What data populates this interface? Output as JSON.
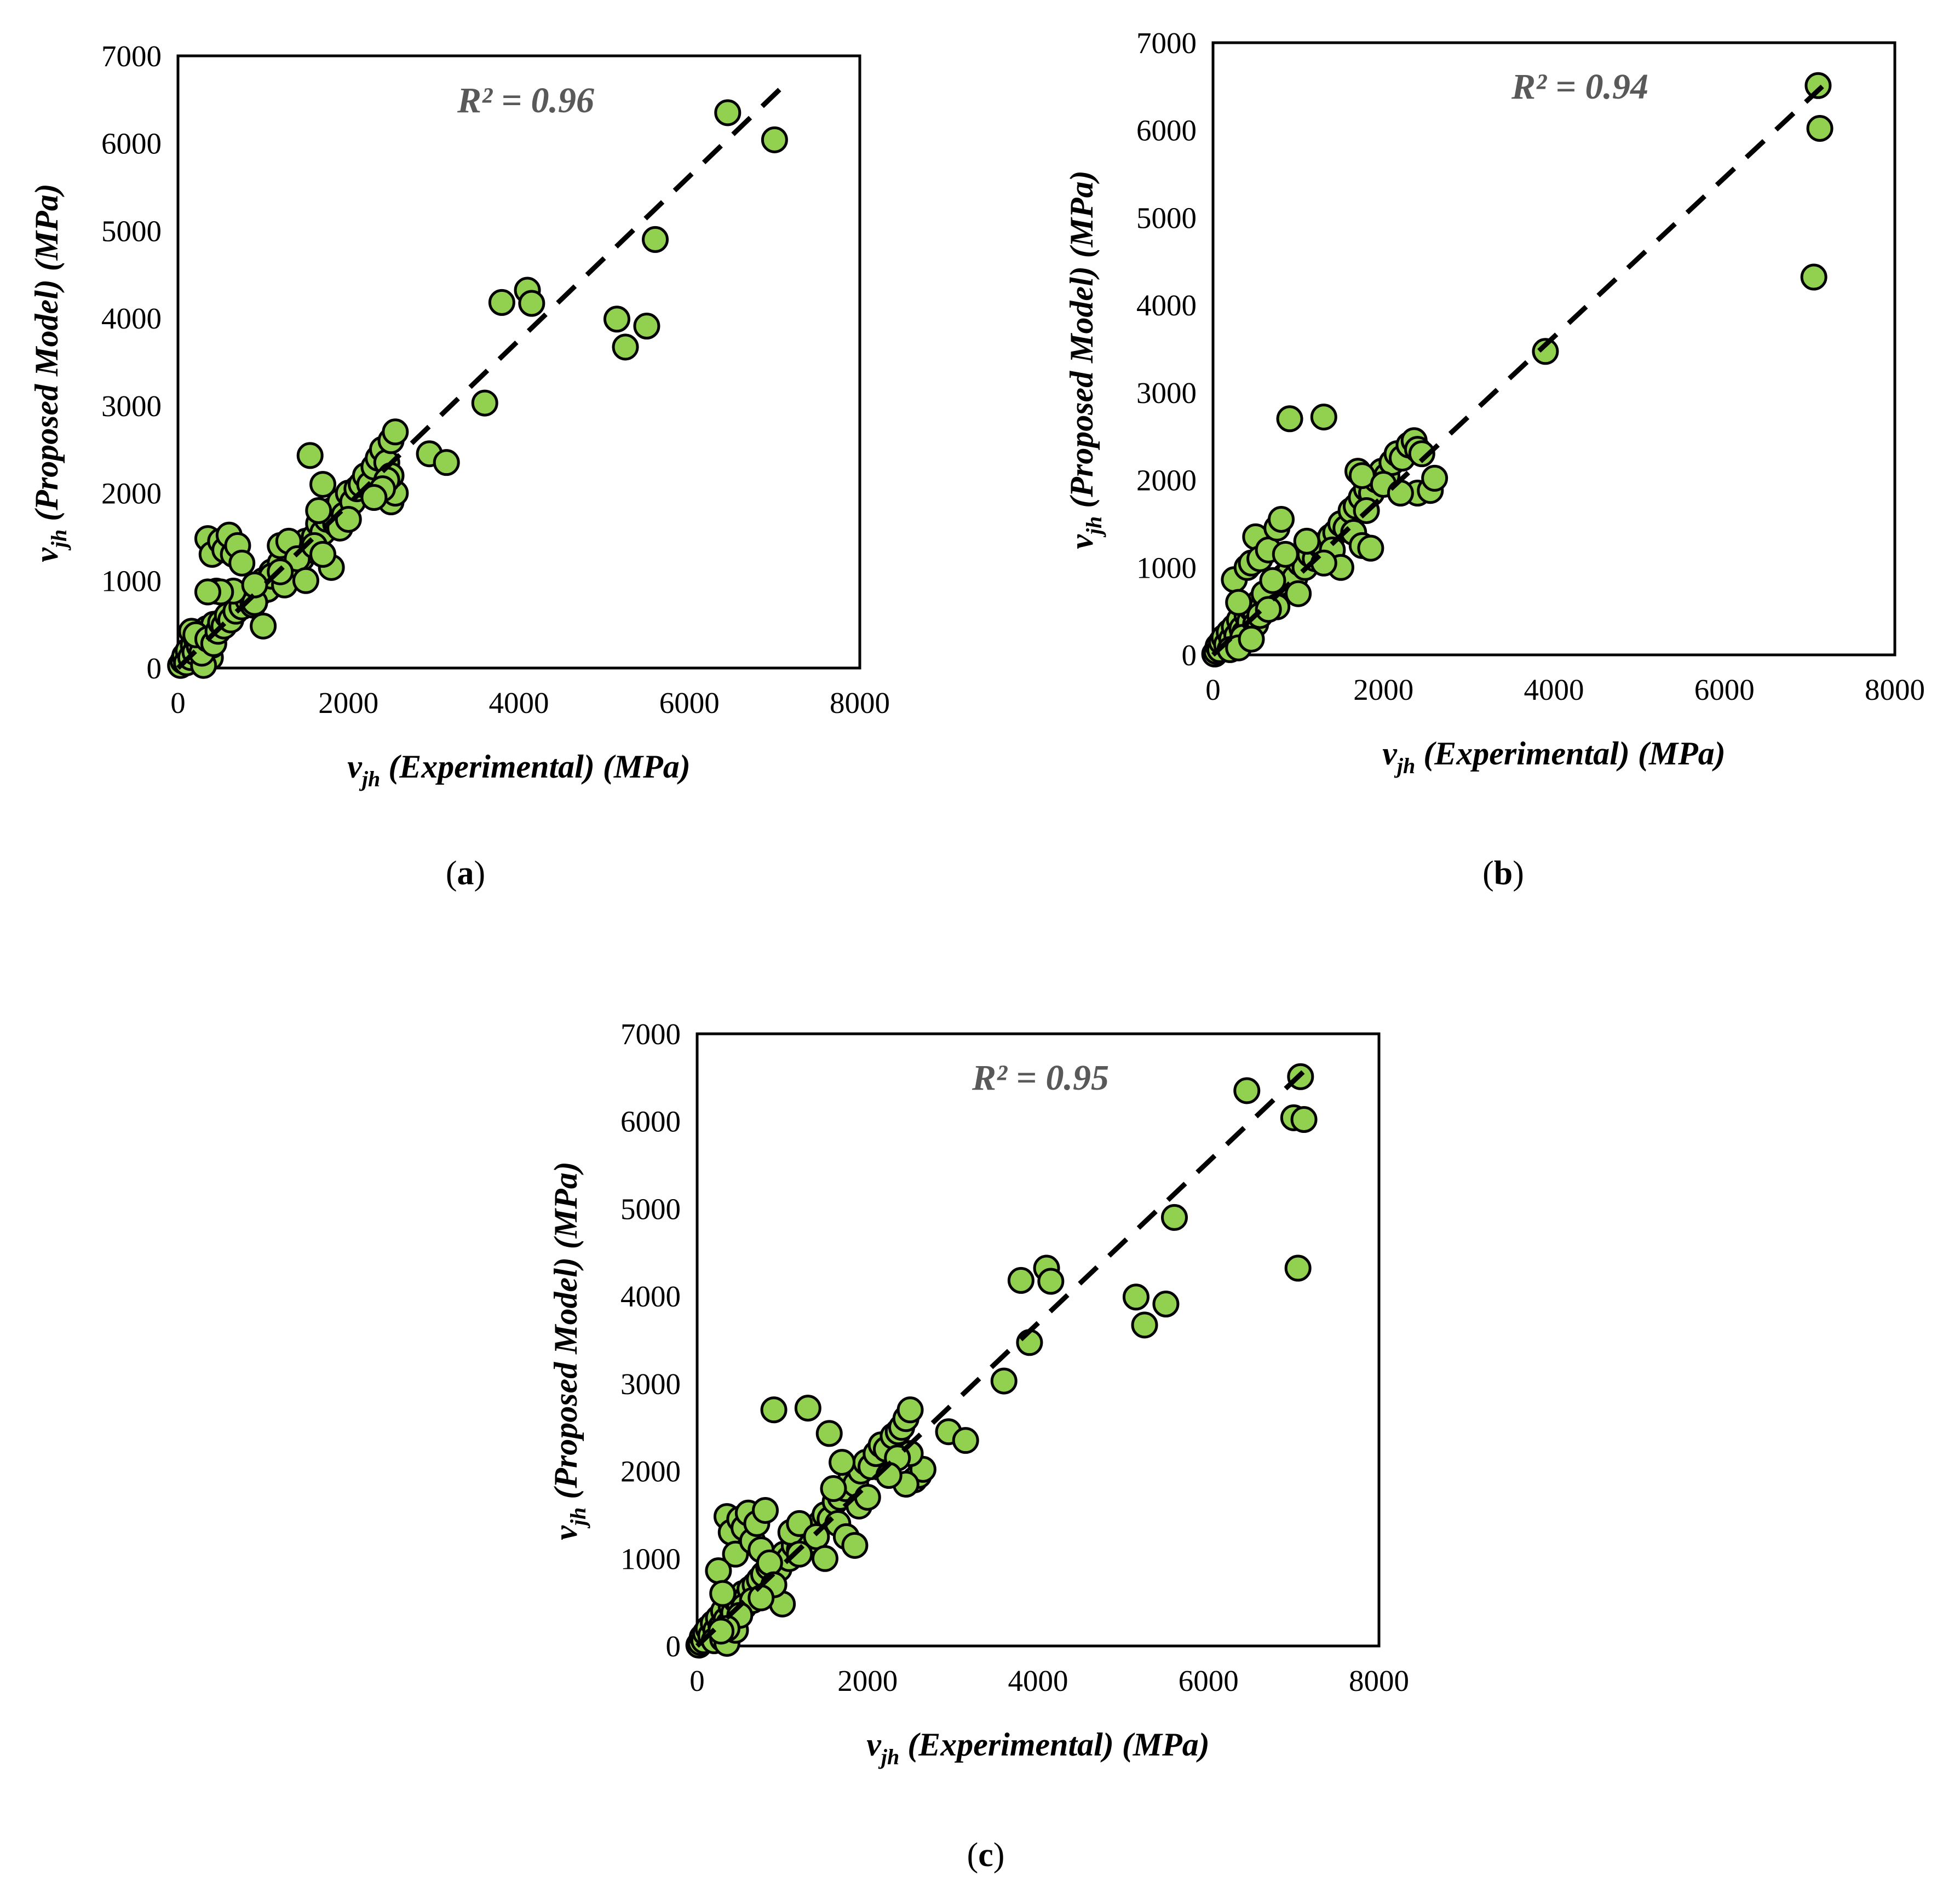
{
  "chart_data": [
    {
      "panel": "a",
      "type": "scatter",
      "caption": "a",
      "r2_label": "R² = 0.96",
      "xlabel_var": "v",
      "xlabel_sub": "jh",
      "xlabel_rest": " (Experimental) (MPa)",
      "ylabel_var": "v",
      "ylabel_sub": "jh",
      "ylabel_rest": " (Proposed Model) (MPa)",
      "xlim": [
        0,
        8000
      ],
      "ylim": [
        0,
        7000
      ],
      "xticks": [
        "0",
        "2000",
        "4000",
        "6000",
        "8000"
      ],
      "yticks": [
        "0",
        "1000",
        "2000",
        "3000",
        "4000",
        "5000",
        "6000",
        "7000"
      ],
      "trendline": [
        [
          0,
          0
        ],
        [
          7150,
          6700
        ]
      ],
      "points": [
        [
          30,
          30
        ],
        [
          60,
          80
        ],
        [
          80,
          140
        ],
        [
          100,
          60
        ],
        [
          120,
          200
        ],
        [
          150,
          120
        ],
        [
          180,
          260
        ],
        [
          200,
          180
        ],
        [
          220,
          320
        ],
        [
          250,
          250
        ],
        [
          270,
          400
        ],
        [
          300,
          300
        ],
        [
          320,
          200
        ],
        [
          340,
          450
        ],
        [
          360,
          350
        ],
        [
          380,
          120
        ],
        [
          400,
          260
        ],
        [
          420,
          500
        ],
        [
          300,
          30
        ],
        [
          280,
          170
        ],
        [
          160,
          420
        ],
        [
          210,
          380
        ],
        [
          350,
          330
        ],
        [
          420,
          280
        ],
        [
          470,
          420
        ],
        [
          500,
          520
        ],
        [
          540,
          480
        ],
        [
          580,
          600
        ],
        [
          620,
          550
        ],
        [
          680,
          650
        ],
        [
          750,
          700
        ],
        [
          820,
          780
        ],
        [
          880,
          720
        ],
        [
          950,
          850
        ],
        [
          1000,
          1000
        ],
        [
          1050,
          900
        ],
        [
          1100,
          1100
        ],
        [
          1150,
          1050
        ],
        [
          1200,
          1200
        ],
        [
          1300,
          1100
        ],
        [
          1400,
          1300
        ],
        [
          1450,
          1250
        ],
        [
          1500,
          1450
        ],
        [
          1550,
          1350
        ],
        [
          1600,
          1500
        ],
        [
          1650,
          1650
        ],
        [
          1700,
          1550
        ],
        [
          1750,
          1700
        ],
        [
          1800,
          1800
        ],
        [
          1850,
          1650
        ],
        [
          1900,
          1900
        ],
        [
          1950,
          1750
        ],
        [
          2000,
          2000
        ],
        [
          2050,
          1900
        ],
        [
          2100,
          2050
        ],
        [
          2150,
          2100
        ],
        [
          2200,
          2200
        ],
        [
          2250,
          2100
        ],
        [
          2300,
          2300
        ],
        [
          2350,
          2400
        ],
        [
          2400,
          2500
        ],
        [
          2450,
          2350
        ],
        [
          2500,
          2600
        ],
        [
          2550,
          2700
        ],
        [
          2500,
          1900
        ],
        [
          2550,
          2000
        ],
        [
          2500,
          2200
        ],
        [
          2450,
          2150
        ],
        [
          2400,
          2050
        ],
        [
          2300,
          1950
        ],
        [
          350,
          1480
        ],
        [
          400,
          1300
        ],
        [
          450,
          880
        ],
        [
          500,
          1450
        ],
        [
          550,
          1350
        ],
        [
          600,
          1520
        ],
        [
          650,
          1300
        ],
        [
          700,
          1400
        ],
        [
          750,
          1200
        ],
        [
          650,
          880
        ],
        [
          500,
          870
        ],
        [
          350,
          870
        ],
        [
          900,
          750
        ],
        [
          1000,
          480
        ],
        [
          1100,
          1050
        ],
        [
          1200,
          1400
        ],
        [
          1250,
          950
        ],
        [
          1300,
          1450
        ],
        [
          1400,
          1250
        ],
        [
          1500,
          1000
        ],
        [
          1550,
          2430
        ],
        [
          1700,
          2100
        ],
        [
          1800,
          1150
        ],
        [
          1900,
          1600
        ],
        [
          2000,
          1700
        ],
        [
          1600,
          1400
        ],
        [
          1650,
          1800
        ],
        [
          1700,
          1300
        ],
        [
          1200,
          1100
        ],
        [
          900,
          950
        ],
        [
          2950,
          2450
        ],
        [
          3150,
          2350
        ],
        [
          3600,
          3030
        ],
        [
          3800,
          4180
        ],
        [
          4100,
          4320
        ],
        [
          4150,
          4170
        ],
        [
          5150,
          3990
        ],
        [
          5250,
          3670
        ],
        [
          5500,
          3910
        ],
        [
          5600,
          4900
        ],
        [
          6450,
          6350
        ],
        [
          7000,
          6040
        ]
      ]
    },
    {
      "panel": "b",
      "type": "scatter",
      "caption": "b",
      "r2_label": "R² = 0.94",
      "xlabel_var": "v",
      "xlabel_sub": "jh",
      "xlabel_rest": " (Experimental) (MPa)",
      "ylabel_var": "v",
      "ylabel_sub": "jh",
      "ylabel_rest": " (Proposed Model) (MPa)",
      "xlim": [
        0,
        8000
      ],
      "ylim": [
        0,
        7000
      ],
      "xticks": [
        "0",
        "2000",
        "4000",
        "6000",
        "8000"
      ],
      "yticks": [
        "0",
        "1000",
        "2000",
        "3000",
        "4000",
        "5000",
        "6000",
        "7000"
      ],
      "trendline": [
        [
          0,
          0
        ],
        [
          7150,
          6500
        ]
      ],
      "points": [
        [
          20,
          10
        ],
        [
          40,
          40
        ],
        [
          60,
          100
        ],
        [
          80,
          60
        ],
        [
          100,
          150
        ],
        [
          130,
          200
        ],
        [
          160,
          120
        ],
        [
          190,
          260
        ],
        [
          220,
          180
        ],
        [
          250,
          320
        ],
        [
          280,
          220
        ],
        [
          310,
          400
        ],
        [
          340,
          300
        ],
        [
          370,
          250
        ],
        [
          400,
          450
        ],
        [
          430,
          380
        ],
        [
          460,
          520
        ],
        [
          500,
          470
        ],
        [
          540,
          600
        ],
        [
          580,
          550
        ],
        [
          620,
          650
        ],
        [
          680,
          700
        ],
        [
          730,
          760
        ],
        [
          780,
          820
        ],
        [
          840,
          900
        ],
        [
          900,
          950
        ],
        [
          960,
          880
        ],
        [
          1020,
          1050
        ],
        [
          1080,
          1000
        ],
        [
          1140,
          1150
        ],
        [
          1200,
          1100
        ],
        [
          1260,
          1250
        ],
        [
          1320,
          1200
        ],
        [
          1380,
          1350
        ],
        [
          1440,
          1400
        ],
        [
          1500,
          1500
        ],
        [
          1560,
          1450
        ],
        [
          1620,
          1650
        ],
        [
          1680,
          1700
        ],
        [
          1740,
          1800
        ],
        [
          1800,
          1900
        ],
        [
          1860,
          1850
        ],
        [
          1920,
          2000
        ],
        [
          1980,
          2100
        ],
        [
          2040,
          2050
        ],
        [
          2100,
          2200
        ],
        [
          2160,
          2300
        ],
        [
          2220,
          2250
        ],
        [
          2300,
          2400
        ],
        [
          2360,
          2450
        ],
        [
          2400,
          1850
        ],
        [
          2550,
          1880
        ],
        [
          2600,
          2020
        ],
        [
          250,
          860
        ],
        [
          300,
          600
        ],
        [
          400,
          1000
        ],
        [
          450,
          1050
        ],
        [
          500,
          1350
        ],
        [
          550,
          1100
        ],
        [
          600,
          700
        ],
        [
          650,
          1200
        ],
        [
          700,
          850
        ],
        [
          750,
          1450
        ],
        [
          800,
          1550
        ],
        [
          850,
          1150
        ],
        [
          900,
          2700
        ],
        [
          1300,
          2720
        ],
        [
          1100,
          1300
        ],
        [
          1400,
          1200
        ],
        [
          1500,
          1000
        ],
        [
          1650,
          1400
        ],
        [
          1750,
          1250
        ],
        [
          1850,
          1220
        ],
        [
          1700,
          2100
        ],
        [
          1750,
          2050
        ],
        [
          1800,
          1650
        ],
        [
          2000,
          1950
        ],
        [
          2200,
          1850
        ],
        [
          2400,
          2350
        ],
        [
          2450,
          2300
        ],
        [
          1300,
          1050
        ],
        [
          1000,
          700
        ],
        [
          750,
          550
        ],
        [
          500,
          350
        ],
        [
          350,
          200
        ],
        [
          200,
          60
        ],
        [
          300,
          80
        ],
        [
          450,
          180
        ],
        [
          550,
          450
        ],
        [
          650,
          520
        ],
        [
          3900,
          3470
        ],
        [
          7050,
          4320
        ],
        [
          7100,
          6510
        ],
        [
          7120,
          6020
        ]
      ]
    },
    {
      "panel": "c",
      "type": "scatter",
      "caption": "c",
      "r2_label": "R² = 0.95",
      "xlabel_var": "v",
      "xlabel_sub": "jh",
      "xlabel_rest": " (Experimental) (MPa)",
      "ylabel_var": "v",
      "ylabel_sub": "jh",
      "ylabel_rest": " (Proposed Model) (MPa)",
      "xlim": [
        0,
        8000
      ],
      "ylim": [
        0,
        7000
      ],
      "xticks": [
        "0",
        "2000",
        "4000",
        "6000",
        "8000"
      ],
      "yticks": [
        "0",
        "1000",
        "2000",
        "3000",
        "4000",
        "5000",
        "6000",
        "7000"
      ],
      "trendline": [
        [
          0,
          0
        ],
        [
          7150,
          6600
        ]
      ],
      "points": [
        [
          20,
          10
        ],
        [
          40,
          40
        ],
        [
          60,
          100
        ],
        [
          80,
          60
        ],
        [
          100,
          150
        ],
        [
          130,
          200
        ],
        [
          160,
          120
        ],
        [
          190,
          260
        ],
        [
          220,
          180
        ],
        [
          250,
          320
        ],
        [
          280,
          220
        ],
        [
          310,
          400
        ],
        [
          340,
          300
        ],
        [
          370,
          250
        ],
        [
          400,
          450
        ],
        [
          430,
          380
        ],
        [
          460,
          520
        ],
        [
          500,
          470
        ],
        [
          540,
          600
        ],
        [
          580,
          550
        ],
        [
          620,
          650
        ],
        [
          680,
          700
        ],
        [
          730,
          760
        ],
        [
          780,
          820
        ],
        [
          840,
          900
        ],
        [
          900,
          950
        ],
        [
          960,
          880
        ],
        [
          1020,
          1050
        ],
        [
          1080,
          1000
        ],
        [
          1140,
          1150
        ],
        [
          1200,
          1100
        ],
        [
          1260,
          1250
        ],
        [
          1320,
          1200
        ],
        [
          1380,
          1350
        ],
        [
          1440,
          1400
        ],
        [
          1500,
          1500
        ],
        [
          1560,
          1450
        ],
        [
          1620,
          1650
        ],
        [
          1680,
          1700
        ],
        [
          1740,
          1800
        ],
        [
          1800,
          1900
        ],
        [
          1860,
          1850
        ],
        [
          1920,
          2000
        ],
        [
          1980,
          2100
        ],
        [
          2040,
          2050
        ],
        [
          2100,
          2200
        ],
        [
          2160,
          2300
        ],
        [
          2220,
          2250
        ],
        [
          2300,
          2400
        ],
        [
          2360,
          2450
        ],
        [
          2400,
          2500
        ],
        [
          2450,
          2600
        ],
        [
          2500,
          2700
        ],
        [
          2550,
          1900
        ],
        [
          2600,
          1950
        ],
        [
          2650,
          2020
        ],
        [
          2500,
          2200
        ],
        [
          2450,
          1850
        ],
        [
          2350,
          2150
        ],
        [
          2250,
          1950
        ],
        [
          350,
          1480
        ],
        [
          400,
          1300
        ],
        [
          450,
          1050
        ],
        [
          500,
          1450
        ],
        [
          550,
          1350
        ],
        [
          600,
          1520
        ],
        [
          650,
          1200
        ],
        [
          700,
          1400
        ],
        [
          750,
          1100
        ],
        [
          800,
          1550
        ],
        [
          850,
          950
        ],
        [
          900,
          2700
        ],
        [
          1000,
          480
        ],
        [
          1100,
          1300
        ],
        [
          1200,
          1400
        ],
        [
          1300,
          2720
        ],
        [
          1400,
          1250
        ],
        [
          1500,
          1000
        ],
        [
          1550,
          2430
        ],
        [
          1650,
          1400
        ],
        [
          1700,
          2100
        ],
        [
          1750,
          1250
        ],
        [
          1850,
          1150
        ],
        [
          1900,
          1600
        ],
        [
          2000,
          1700
        ],
        [
          1600,
          1800
        ],
        [
          250,
          860
        ],
        [
          300,
          600
        ],
        [
          900,
          700
        ],
        [
          1200,
          1050
        ],
        [
          200,
          60
        ],
        [
          300,
          80
        ],
        [
          350,
          30
        ],
        [
          450,
          180
        ],
        [
          550,
          450
        ],
        [
          650,
          520
        ],
        [
          750,
          550
        ],
        [
          500,
          350
        ],
        [
          350,
          200
        ],
        [
          280,
          170
        ],
        [
          2950,
          2450
        ],
        [
          3150,
          2350
        ],
        [
          3600,
          3030
        ],
        [
          3800,
          4180
        ],
        [
          3900,
          3470
        ],
        [
          4100,
          4320
        ],
        [
          4150,
          4170
        ],
        [
          5150,
          3990
        ],
        [
          5250,
          3670
        ],
        [
          5500,
          3910
        ],
        [
          5600,
          4900
        ],
        [
          6450,
          6350
        ],
        [
          7000,
          6040
        ],
        [
          7050,
          4320
        ],
        [
          7080,
          6510
        ],
        [
          7120,
          6020
        ]
      ]
    }
  ]
}
